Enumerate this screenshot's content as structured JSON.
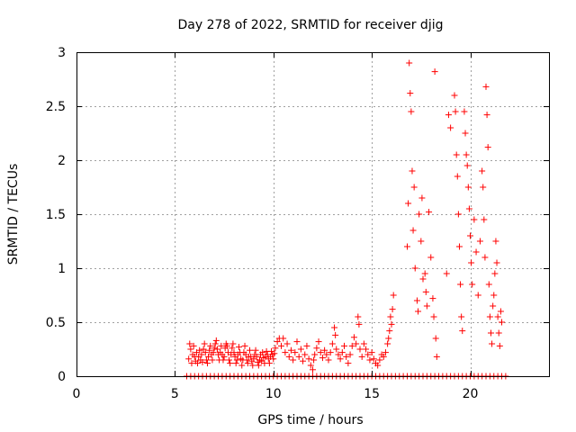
{
  "chart_data": {
    "type": "scatter",
    "title": "Day 278 of 2022, SRMTID for receiver djig",
    "xlabel": "GPS time / hours",
    "ylabel": "SRMTID / TECUs",
    "xlim": [
      0,
      24
    ],
    "ylim": [
      0,
      3
    ],
    "xticks": [
      0,
      5,
      10,
      15,
      20
    ],
    "yticks": [
      0,
      0.5,
      1,
      1.5,
      2,
      2.5,
      3
    ],
    "xtick_labels": [
      "0",
      "5",
      "10",
      "15",
      "20"
    ],
    "ytick_labels": [
      "0",
      "0.5",
      "1",
      "1.5",
      "2",
      "2.5",
      "3"
    ],
    "grid": true,
    "marker": "+",
    "color": "#ff0000",
    "series": [
      {
        "name": "SRMTID",
        "points": [
          [
            5.7,
            0.16
          ],
          [
            5.75,
            0.3
          ],
          [
            5.8,
            0.25
          ],
          [
            5.85,
            0.12
          ],
          [
            5.9,
            0.2
          ],
          [
            5.95,
            0.28
          ],
          [
            6.0,
            0.18
          ],
          [
            6.05,
            0.14
          ],
          [
            6.1,
            0.22
          ],
          [
            6.15,
            0.12
          ],
          [
            6.2,
            0.18
          ],
          [
            6.25,
            0.24
          ],
          [
            6.3,
            0.15
          ],
          [
            6.35,
            0.2
          ],
          [
            6.4,
            0.13
          ],
          [
            6.45,
            0.25
          ],
          [
            6.5,
            0.3
          ],
          [
            6.55,
            0.22
          ],
          [
            6.6,
            0.15
          ],
          [
            6.65,
            0.12
          ],
          [
            6.7,
            0.18
          ],
          [
            6.75,
            0.24
          ],
          [
            6.8,
            0.28
          ],
          [
            6.85,
            0.2
          ],
          [
            6.9,
            0.15
          ],
          [
            6.95,
            0.22
          ],
          [
            7.0,
            0.26
          ],
          [
            7.05,
            0.3
          ],
          [
            7.1,
            0.33
          ],
          [
            7.15,
            0.25
          ],
          [
            7.2,
            0.2
          ],
          [
            7.25,
            0.15
          ],
          [
            7.3,
            0.22
          ],
          [
            7.35,
            0.28
          ],
          [
            7.4,
            0.2
          ],
          [
            7.45,
            0.15
          ],
          [
            7.5,
            0.18
          ],
          [
            7.55,
            0.26
          ],
          [
            7.6,
            0.3
          ],
          [
            7.65,
            0.28
          ],
          [
            7.7,
            0.22
          ],
          [
            7.75,
            0.15
          ],
          [
            7.8,
            0.12
          ],
          [
            7.85,
            0.2
          ],
          [
            7.9,
            0.26
          ],
          [
            7.95,
            0.3
          ],
          [
            8.0,
            0.22
          ],
          [
            8.05,
            0.18
          ],
          [
            8.1,
            0.12
          ],
          [
            8.15,
            0.15
          ],
          [
            8.2,
            0.2
          ],
          [
            8.25,
            0.27
          ],
          [
            8.3,
            0.22
          ],
          [
            8.35,
            0.16
          ],
          [
            8.4,
            0.1
          ],
          [
            8.45,
            0.15
          ],
          [
            8.5,
            0.22
          ],
          [
            8.55,
            0.28
          ],
          [
            8.6,
            0.2
          ],
          [
            8.65,
            0.15
          ],
          [
            8.7,
            0.12
          ],
          [
            8.75,
            0.18
          ],
          [
            8.8,
            0.24
          ],
          [
            8.85,
            0.18
          ],
          [
            8.9,
            0.14
          ],
          [
            8.95,
            0.1
          ],
          [
            9.0,
            0.16
          ],
          [
            9.05,
            0.2
          ],
          [
            9.1,
            0.24
          ],
          [
            9.15,
            0.18
          ],
          [
            9.2,
            0.13
          ],
          [
            9.25,
            0.1
          ],
          [
            9.3,
            0.15
          ],
          [
            9.35,
            0.2
          ],
          [
            9.4,
            0.14
          ],
          [
            9.45,
            0.22
          ],
          [
            9.5,
            0.17
          ],
          [
            9.55,
            0.12
          ],
          [
            9.6,
            0.18
          ],
          [
            9.65,
            0.23
          ],
          [
            9.7,
            0.2
          ],
          [
            9.75,
            0.16
          ],
          [
            9.8,
            0.12
          ],
          [
            9.85,
            0.18
          ],
          [
            9.9,
            0.23
          ],
          [
            9.95,
            0.2
          ],
          [
            10.0,
            0.16
          ],
          [
            10.05,
            0.21
          ],
          [
            10.1,
            0.26
          ],
          [
            10.2,
            0.32
          ],
          [
            10.3,
            0.35
          ],
          [
            10.4,
            0.28
          ],
          [
            10.5,
            0.35
          ],
          [
            10.6,
            0.22
          ],
          [
            10.7,
            0.3
          ],
          [
            10.8,
            0.18
          ],
          [
            10.9,
            0.24
          ],
          [
            11.0,
            0.15
          ],
          [
            11.1,
            0.22
          ],
          [
            11.2,
            0.32
          ],
          [
            11.3,
            0.18
          ],
          [
            11.4,
            0.25
          ],
          [
            11.5,
            0.14
          ],
          [
            11.6,
            0.2
          ],
          [
            11.7,
            0.28
          ],
          [
            11.8,
            0.16
          ],
          [
            11.9,
            0.1
          ],
          [
            12.0,
            0.06
          ],
          [
            12.05,
            0.15
          ],
          [
            12.1,
            0.2
          ],
          [
            12.2,
            0.26
          ],
          [
            12.3,
            0.32
          ],
          [
            12.4,
            0.22
          ],
          [
            12.5,
            0.17
          ],
          [
            12.6,
            0.24
          ],
          [
            12.7,
            0.2
          ],
          [
            12.8,
            0.15
          ],
          [
            12.9,
            0.22
          ],
          [
            13.0,
            0.3
          ],
          [
            13.1,
            0.45
          ],
          [
            13.15,
            0.38
          ],
          [
            13.2,
            0.25
          ],
          [
            13.3,
            0.2
          ],
          [
            13.4,
            0.16
          ],
          [
            13.5,
            0.22
          ],
          [
            13.6,
            0.28
          ],
          [
            13.7,
            0.18
          ],
          [
            13.8,
            0.12
          ],
          [
            13.9,
            0.2
          ],
          [
            14.0,
            0.28
          ],
          [
            14.1,
            0.36
          ],
          [
            14.2,
            0.3
          ],
          [
            14.3,
            0.55
          ],
          [
            14.35,
            0.48
          ],
          [
            14.4,
            0.25
          ],
          [
            14.5,
            0.18
          ],
          [
            14.6,
            0.3
          ],
          [
            14.7,
            0.25
          ],
          [
            14.8,
            0.2
          ],
          [
            14.9,
            0.15
          ],
          [
            15.0,
            0.22
          ],
          [
            15.1,
            0.16
          ],
          [
            15.2,
            0.12
          ],
          [
            15.3,
            0.1
          ],
          [
            15.4,
            0.15
          ],
          [
            15.5,
            0.2
          ],
          [
            15.6,
            0.18
          ],
          [
            15.7,
            0.22
          ],
          [
            15.8,
            0.3
          ],
          [
            15.85,
            0.35
          ],
          [
            15.9,
            0.42
          ],
          [
            15.95,
            0.55
          ],
          [
            16.0,
            0.48
          ],
          [
            16.05,
            0.62
          ],
          [
            16.1,
            0.75
          ],
          [
            16.8,
            1.2
          ],
          [
            16.85,
            1.6
          ],
          [
            16.9,
            2.9
          ],
          [
            16.95,
            2.62
          ],
          [
            17.0,
            2.45
          ],
          [
            17.05,
            1.9
          ],
          [
            17.1,
            1.35
          ],
          [
            17.15,
            1.75
          ],
          [
            17.2,
            1.0
          ],
          [
            17.3,
            0.7
          ],
          [
            17.35,
            0.6
          ],
          [
            17.4,
            1.5
          ],
          [
            17.5,
            1.25
          ],
          [
            17.55,
            1.65
          ],
          [
            17.6,
            0.9
          ],
          [
            17.7,
            0.95
          ],
          [
            17.75,
            0.78
          ],
          [
            17.8,
            0.65
          ],
          [
            17.9,
            1.52
          ],
          [
            18.0,
            1.1
          ],
          [
            18.1,
            0.72
          ],
          [
            18.15,
            0.55
          ],
          [
            18.2,
            2.82
          ],
          [
            18.25,
            0.35
          ],
          [
            18.3,
            0.18
          ],
          [
            18.8,
            0.95
          ],
          [
            18.9,
            2.42
          ],
          [
            19.0,
            2.3
          ],
          [
            19.2,
            2.6
          ],
          [
            19.25,
            2.45
          ],
          [
            19.3,
            2.05
          ],
          [
            19.35,
            1.85
          ],
          [
            19.4,
            1.5
          ],
          [
            19.45,
            1.2
          ],
          [
            19.5,
            0.85
          ],
          [
            19.55,
            0.55
          ],
          [
            19.6,
            0.42
          ],
          [
            19.7,
            2.45
          ],
          [
            19.75,
            2.25
          ],
          [
            19.8,
            2.05
          ],
          [
            19.85,
            1.95
          ],
          [
            19.9,
            1.75
          ],
          [
            19.95,
            1.55
          ],
          [
            20.0,
            1.3
          ],
          [
            20.05,
            1.05
          ],
          [
            20.1,
            0.85
          ],
          [
            20.2,
            1.45
          ],
          [
            20.3,
            1.15
          ],
          [
            20.4,
            0.75
          ],
          [
            20.5,
            1.25
          ],
          [
            20.6,
            1.9
          ],
          [
            20.65,
            1.75
          ],
          [
            20.7,
            1.45
          ],
          [
            20.75,
            1.1
          ],
          [
            20.8,
            2.68
          ],
          [
            20.85,
            2.42
          ],
          [
            20.9,
            2.12
          ],
          [
            20.95,
            0.85
          ],
          [
            21.0,
            0.55
          ],
          [
            21.05,
            0.4
          ],
          [
            21.1,
            0.3
          ],
          [
            21.15,
            0.65
          ],
          [
            21.2,
            0.75
          ],
          [
            21.25,
            0.95
          ],
          [
            21.3,
            1.25
          ],
          [
            21.35,
            1.05
          ],
          [
            21.4,
            0.55
          ],
          [
            21.45,
            0.4
          ],
          [
            21.5,
            0.28
          ],
          [
            21.55,
            0.6
          ],
          [
            21.6,
            0.5
          ],
          [
            5.6,
            0
          ],
          [
            5.8,
            0
          ],
          [
            6.0,
            0
          ],
          [
            6.2,
            0
          ],
          [
            6.4,
            0
          ],
          [
            6.6,
            0
          ],
          [
            6.8,
            0
          ],
          [
            7.0,
            0
          ],
          [
            7.2,
            0
          ],
          [
            7.4,
            0
          ],
          [
            7.6,
            0
          ],
          [
            7.8,
            0
          ],
          [
            8.0,
            0
          ],
          [
            8.2,
            0
          ],
          [
            8.4,
            0
          ],
          [
            8.6,
            0
          ],
          [
            8.8,
            0
          ],
          [
            9.0,
            0
          ],
          [
            9.2,
            0
          ],
          [
            9.4,
            0
          ],
          [
            9.6,
            0
          ],
          [
            9.8,
            0
          ],
          [
            10.0,
            0
          ],
          [
            10.2,
            0
          ],
          [
            10.4,
            0
          ],
          [
            10.6,
            0
          ],
          [
            10.8,
            0
          ],
          [
            11.0,
            0
          ],
          [
            11.2,
            0
          ],
          [
            11.4,
            0
          ],
          [
            11.6,
            0
          ],
          [
            11.8,
            0
          ],
          [
            12.0,
            0
          ],
          [
            12.2,
            0
          ],
          [
            12.4,
            0
          ],
          [
            12.6,
            0
          ],
          [
            12.8,
            0
          ],
          [
            13.0,
            0
          ],
          [
            13.2,
            0
          ],
          [
            13.4,
            0
          ],
          [
            13.6,
            0
          ],
          [
            13.8,
            0
          ],
          [
            14.0,
            0
          ],
          [
            14.2,
            0
          ],
          [
            14.4,
            0
          ],
          [
            14.6,
            0
          ],
          [
            14.8,
            0
          ],
          [
            15.0,
            0
          ],
          [
            15.2,
            0
          ],
          [
            15.4,
            0
          ],
          [
            15.6,
            0
          ],
          [
            15.8,
            0
          ],
          [
            16.0,
            0
          ],
          [
            16.2,
            0
          ],
          [
            16.4,
            0
          ],
          [
            16.6,
            0
          ],
          [
            16.8,
            0
          ],
          [
            17.0,
            0
          ],
          [
            17.2,
            0
          ],
          [
            17.4,
            0
          ],
          [
            17.6,
            0
          ],
          [
            17.8,
            0
          ],
          [
            18.0,
            0
          ],
          [
            18.2,
            0
          ],
          [
            18.4,
            0
          ],
          [
            18.6,
            0
          ],
          [
            18.8,
            0
          ],
          [
            19.0,
            0
          ],
          [
            19.2,
            0
          ],
          [
            19.4,
            0
          ],
          [
            19.6,
            0
          ],
          [
            19.8,
            0
          ],
          [
            20.0,
            0
          ],
          [
            20.2,
            0
          ],
          [
            20.4,
            0
          ],
          [
            20.6,
            0
          ],
          [
            20.8,
            0
          ],
          [
            21.0,
            0
          ],
          [
            21.2,
            0
          ],
          [
            21.4,
            0
          ],
          [
            21.6,
            0
          ],
          [
            21.8,
            0
          ]
        ]
      }
    ]
  }
}
